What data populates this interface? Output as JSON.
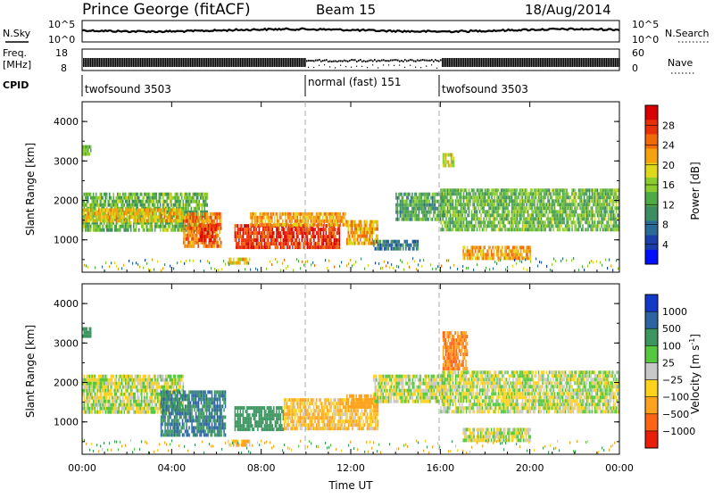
{
  "header": {
    "station": "Prince George (fitACF)",
    "beam": "Beam 15",
    "date": "18/Aug/2014"
  },
  "noise_panel": {
    "left_label": "N.Sky",
    "left_ticks": [
      "10^5",
      "10^0"
    ],
    "right_ticks": [
      "10^5",
      "10^0"
    ],
    "right_label": "N.Search"
  },
  "freq_panel": {
    "left_label_1": "Freq.",
    "left_label_2": "[MHz]",
    "left_ticks": [
      "18",
      "8"
    ],
    "right_ticks": [
      "60",
      "0"
    ],
    "right_label": "Nave"
  },
  "cpid_panel": {
    "label": "CPID",
    "segments": [
      {
        "name": "twofsound 3503",
        "start_hour": 0,
        "end_hour": 10
      },
      {
        "name": "normal (fast) 151",
        "start_hour": 10,
        "end_hour": 16
      },
      {
        "name": "twofsound 3503",
        "start_hour": 16,
        "end_hour": 24
      }
    ]
  },
  "chart_data": [
    {
      "type": "heatmap",
      "parameter": "power",
      "ylabel": "Slant Range [km]",
      "ylim": [
        180,
        4500
      ],
      "yticks": [
        "1000",
        "2000",
        "3000",
        "4000"
      ],
      "xlim": [
        0,
        24
      ],
      "colorbar": {
        "label": "Power [dB]",
        "ticks": [
          "4",
          "8",
          "12",
          "16",
          "20",
          "24",
          "28"
        ],
        "range": [
          0,
          32
        ],
        "colors": [
          "#0010ff",
          "#1a3fa8",
          "#2a6a96",
          "#3d8c62",
          "#4faa45",
          "#8bcc2e",
          "#e0d81a",
          "#f5a20f",
          "#f06a0a",
          "#e83008",
          "#d80000"
        ]
      },
      "regions": [
        {
          "t0": 0.0,
          "t1": 5.6,
          "r0": 1250,
          "r1": 2200,
          "v": 14
        },
        {
          "t0": 0.0,
          "t1": 4.5,
          "r0": 1450,
          "r1": 1800,
          "v": 20
        },
        {
          "t0": 4.5,
          "t1": 6.2,
          "r0": 850,
          "r1": 1700,
          "v": 24
        },
        {
          "t0": 5.2,
          "t1": 6.0,
          "r0": 1000,
          "r1": 1400,
          "v": 28
        },
        {
          "t0": 6.8,
          "t1": 11.5,
          "r0": 800,
          "r1": 1400,
          "v": 28
        },
        {
          "t0": 7.5,
          "t1": 11.8,
          "r0": 1400,
          "r1": 1700,
          "v": 22
        },
        {
          "t0": 11.8,
          "t1": 13.2,
          "r0": 900,
          "r1": 1500,
          "v": 22
        },
        {
          "t0": 13.0,
          "t1": 15.0,
          "r0": 800,
          "r1": 1000,
          "v": 8
        },
        {
          "t0": 14.0,
          "t1": 16.2,
          "r0": 1500,
          "r1": 2200,
          "v": 12
        },
        {
          "t0": 16.0,
          "t1": 24.0,
          "r0": 1250,
          "r1": 2300,
          "v": 14
        },
        {
          "t0": 17.0,
          "t1": 20.0,
          "r0": 550,
          "r1": 850,
          "v": 22
        },
        {
          "t0": 16.1,
          "t1": 16.6,
          "r0": 2900,
          "r1": 3200,
          "v": 18
        },
        {
          "t0": 6.5,
          "t1": 7.5,
          "r0": 400,
          "r1": 550,
          "v": 20
        },
        {
          "t0": 0.0,
          "t1": 0.4,
          "r0": 3200,
          "r1": 3400,
          "v": 14
        }
      ]
    },
    {
      "type": "heatmap",
      "parameter": "velocity",
      "ylabel": "Slant Range [km]",
      "ylim": [
        180,
        4500
      ],
      "yticks": [
        "1000",
        "2000",
        "3000",
        "4000"
      ],
      "xlim": [
        0,
        24
      ],
      "xticks": [
        "00:00",
        "04:00",
        "08:00",
        "12:00",
        "16:00",
        "20:00",
        "00:00"
      ],
      "xlabel": "Time UT",
      "colorbar": {
        "label": "Velocity [m s",
        "label_superscript": "-1",
        "label_close": "]",
        "ticks": [
          "1000",
          "500",
          "100",
          "25",
          "−25",
          "−100",
          "−500",
          "−1000"
        ],
        "colors": [
          "#1438c8",
          "#2b64a0",
          "#3c9660",
          "#55c840",
          "#c8c8c8",
          "#ffd21e",
          "#ffa21e",
          "#ff6414",
          "#e81e0a"
        ]
      },
      "regions": [
        {
          "t0": 0.0,
          "t1": 4.5,
          "r0": 1250,
          "r1": 2200,
          "v": 0
        },
        {
          "t0": 3.5,
          "t1": 6.4,
          "r0": 700,
          "r1": 1800,
          "v": 500
        },
        {
          "t0": 6.8,
          "t1": 9.0,
          "r0": 800,
          "r1": 1400,
          "v": 200
        },
        {
          "t0": 9.0,
          "t1": 13.2,
          "r0": 800,
          "r1": 1600,
          "v": -100
        },
        {
          "t0": 11.8,
          "t1": 13.2,
          "r0": 1400,
          "r1": 1700,
          "v": -300
        },
        {
          "t0": 13.0,
          "t1": 16.2,
          "r0": 1500,
          "r1": 2200,
          "v": 0
        },
        {
          "t0": 16.0,
          "t1": 24.0,
          "r0": 1250,
          "r1": 2300,
          "v": 0
        },
        {
          "t0": 16.1,
          "t1": 17.2,
          "r0": 2350,
          "r1": 3300,
          "v": -500
        },
        {
          "t0": 6.5,
          "t1": 7.5,
          "r0": 400,
          "r1": 550,
          "v": -100
        },
        {
          "t0": 17.0,
          "t1": 20.0,
          "r0": 550,
          "r1": 850,
          "v": 0
        },
        {
          "t0": 0.0,
          "t1": 0.4,
          "r0": 3200,
          "r1": 3400,
          "v": 200
        }
      ]
    }
  ]
}
